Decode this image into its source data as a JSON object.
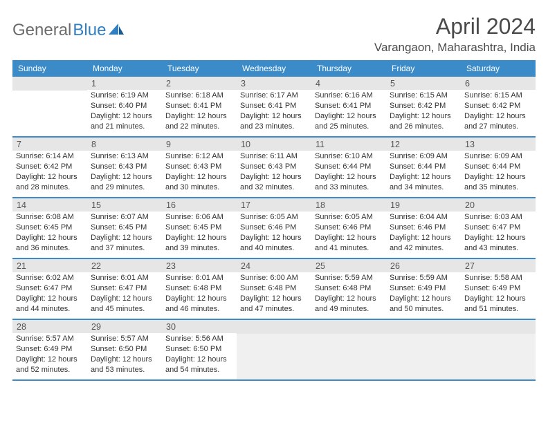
{
  "logo": {
    "text1": "General",
    "text2": "Blue"
  },
  "title": "April 2024",
  "location": "Varangaon, Maharashtra, India",
  "colors": {
    "header_bg": "#3b8bc8",
    "header_text": "#ffffff",
    "daynum_bg": "#e6e6e6",
    "row_border": "#3b8bc8",
    "logo_gray": "#6b6b6b",
    "logo_blue": "#2f7fc2"
  },
  "weekdays": [
    "Sunday",
    "Monday",
    "Tuesday",
    "Wednesday",
    "Thursday",
    "Friday",
    "Saturday"
  ],
  "weeks": [
    [
      {
        "blank": true
      },
      {
        "day": "1",
        "sunrise": "Sunrise: 6:19 AM",
        "sunset": "Sunset: 6:40 PM",
        "daylight": "Daylight: 12 hours and 21 minutes."
      },
      {
        "day": "2",
        "sunrise": "Sunrise: 6:18 AM",
        "sunset": "Sunset: 6:41 PM",
        "daylight": "Daylight: 12 hours and 22 minutes."
      },
      {
        "day": "3",
        "sunrise": "Sunrise: 6:17 AM",
        "sunset": "Sunset: 6:41 PM",
        "daylight": "Daylight: 12 hours and 23 minutes."
      },
      {
        "day": "4",
        "sunrise": "Sunrise: 6:16 AM",
        "sunset": "Sunset: 6:41 PM",
        "daylight": "Daylight: 12 hours and 25 minutes."
      },
      {
        "day": "5",
        "sunrise": "Sunrise: 6:15 AM",
        "sunset": "Sunset: 6:42 PM",
        "daylight": "Daylight: 12 hours and 26 minutes."
      },
      {
        "day": "6",
        "sunrise": "Sunrise: 6:15 AM",
        "sunset": "Sunset: 6:42 PM",
        "daylight": "Daylight: 12 hours and 27 minutes."
      }
    ],
    [
      {
        "day": "7",
        "sunrise": "Sunrise: 6:14 AM",
        "sunset": "Sunset: 6:42 PM",
        "daylight": "Daylight: 12 hours and 28 minutes."
      },
      {
        "day": "8",
        "sunrise": "Sunrise: 6:13 AM",
        "sunset": "Sunset: 6:43 PM",
        "daylight": "Daylight: 12 hours and 29 minutes."
      },
      {
        "day": "9",
        "sunrise": "Sunrise: 6:12 AM",
        "sunset": "Sunset: 6:43 PM",
        "daylight": "Daylight: 12 hours and 30 minutes."
      },
      {
        "day": "10",
        "sunrise": "Sunrise: 6:11 AM",
        "sunset": "Sunset: 6:43 PM",
        "daylight": "Daylight: 12 hours and 32 minutes."
      },
      {
        "day": "11",
        "sunrise": "Sunrise: 6:10 AM",
        "sunset": "Sunset: 6:44 PM",
        "daylight": "Daylight: 12 hours and 33 minutes."
      },
      {
        "day": "12",
        "sunrise": "Sunrise: 6:09 AM",
        "sunset": "Sunset: 6:44 PM",
        "daylight": "Daylight: 12 hours and 34 minutes."
      },
      {
        "day": "13",
        "sunrise": "Sunrise: 6:09 AM",
        "sunset": "Sunset: 6:44 PM",
        "daylight": "Daylight: 12 hours and 35 minutes."
      }
    ],
    [
      {
        "day": "14",
        "sunrise": "Sunrise: 6:08 AM",
        "sunset": "Sunset: 6:45 PM",
        "daylight": "Daylight: 12 hours and 36 minutes."
      },
      {
        "day": "15",
        "sunrise": "Sunrise: 6:07 AM",
        "sunset": "Sunset: 6:45 PM",
        "daylight": "Daylight: 12 hours and 37 minutes."
      },
      {
        "day": "16",
        "sunrise": "Sunrise: 6:06 AM",
        "sunset": "Sunset: 6:45 PM",
        "daylight": "Daylight: 12 hours and 39 minutes."
      },
      {
        "day": "17",
        "sunrise": "Sunrise: 6:05 AM",
        "sunset": "Sunset: 6:46 PM",
        "daylight": "Daylight: 12 hours and 40 minutes."
      },
      {
        "day": "18",
        "sunrise": "Sunrise: 6:05 AM",
        "sunset": "Sunset: 6:46 PM",
        "daylight": "Daylight: 12 hours and 41 minutes."
      },
      {
        "day": "19",
        "sunrise": "Sunrise: 6:04 AM",
        "sunset": "Sunset: 6:46 PM",
        "daylight": "Daylight: 12 hours and 42 minutes."
      },
      {
        "day": "20",
        "sunrise": "Sunrise: 6:03 AM",
        "sunset": "Sunset: 6:47 PM",
        "daylight": "Daylight: 12 hours and 43 minutes."
      }
    ],
    [
      {
        "day": "21",
        "sunrise": "Sunrise: 6:02 AM",
        "sunset": "Sunset: 6:47 PM",
        "daylight": "Daylight: 12 hours and 44 minutes."
      },
      {
        "day": "22",
        "sunrise": "Sunrise: 6:01 AM",
        "sunset": "Sunset: 6:47 PM",
        "daylight": "Daylight: 12 hours and 45 minutes."
      },
      {
        "day": "23",
        "sunrise": "Sunrise: 6:01 AM",
        "sunset": "Sunset: 6:48 PM",
        "daylight": "Daylight: 12 hours and 46 minutes."
      },
      {
        "day": "24",
        "sunrise": "Sunrise: 6:00 AM",
        "sunset": "Sunset: 6:48 PM",
        "daylight": "Daylight: 12 hours and 47 minutes."
      },
      {
        "day": "25",
        "sunrise": "Sunrise: 5:59 AM",
        "sunset": "Sunset: 6:48 PM",
        "daylight": "Daylight: 12 hours and 49 minutes."
      },
      {
        "day": "26",
        "sunrise": "Sunrise: 5:59 AM",
        "sunset": "Sunset: 6:49 PM",
        "daylight": "Daylight: 12 hours and 50 minutes."
      },
      {
        "day": "27",
        "sunrise": "Sunrise: 5:58 AM",
        "sunset": "Sunset: 6:49 PM",
        "daylight": "Daylight: 12 hours and 51 minutes."
      }
    ],
    [
      {
        "day": "28",
        "sunrise": "Sunrise: 5:57 AM",
        "sunset": "Sunset: 6:49 PM",
        "daylight": "Daylight: 12 hours and 52 minutes."
      },
      {
        "day": "29",
        "sunrise": "Sunrise: 5:57 AM",
        "sunset": "Sunset: 6:50 PM",
        "daylight": "Daylight: 12 hours and 53 minutes."
      },
      {
        "day": "30",
        "sunrise": "Sunrise: 5:56 AM",
        "sunset": "Sunset: 6:50 PM",
        "daylight": "Daylight: 12 hours and 54 minutes."
      },
      {
        "tail": true
      },
      {
        "tail": true
      },
      {
        "tail": true
      },
      {
        "tail": true
      }
    ]
  ]
}
